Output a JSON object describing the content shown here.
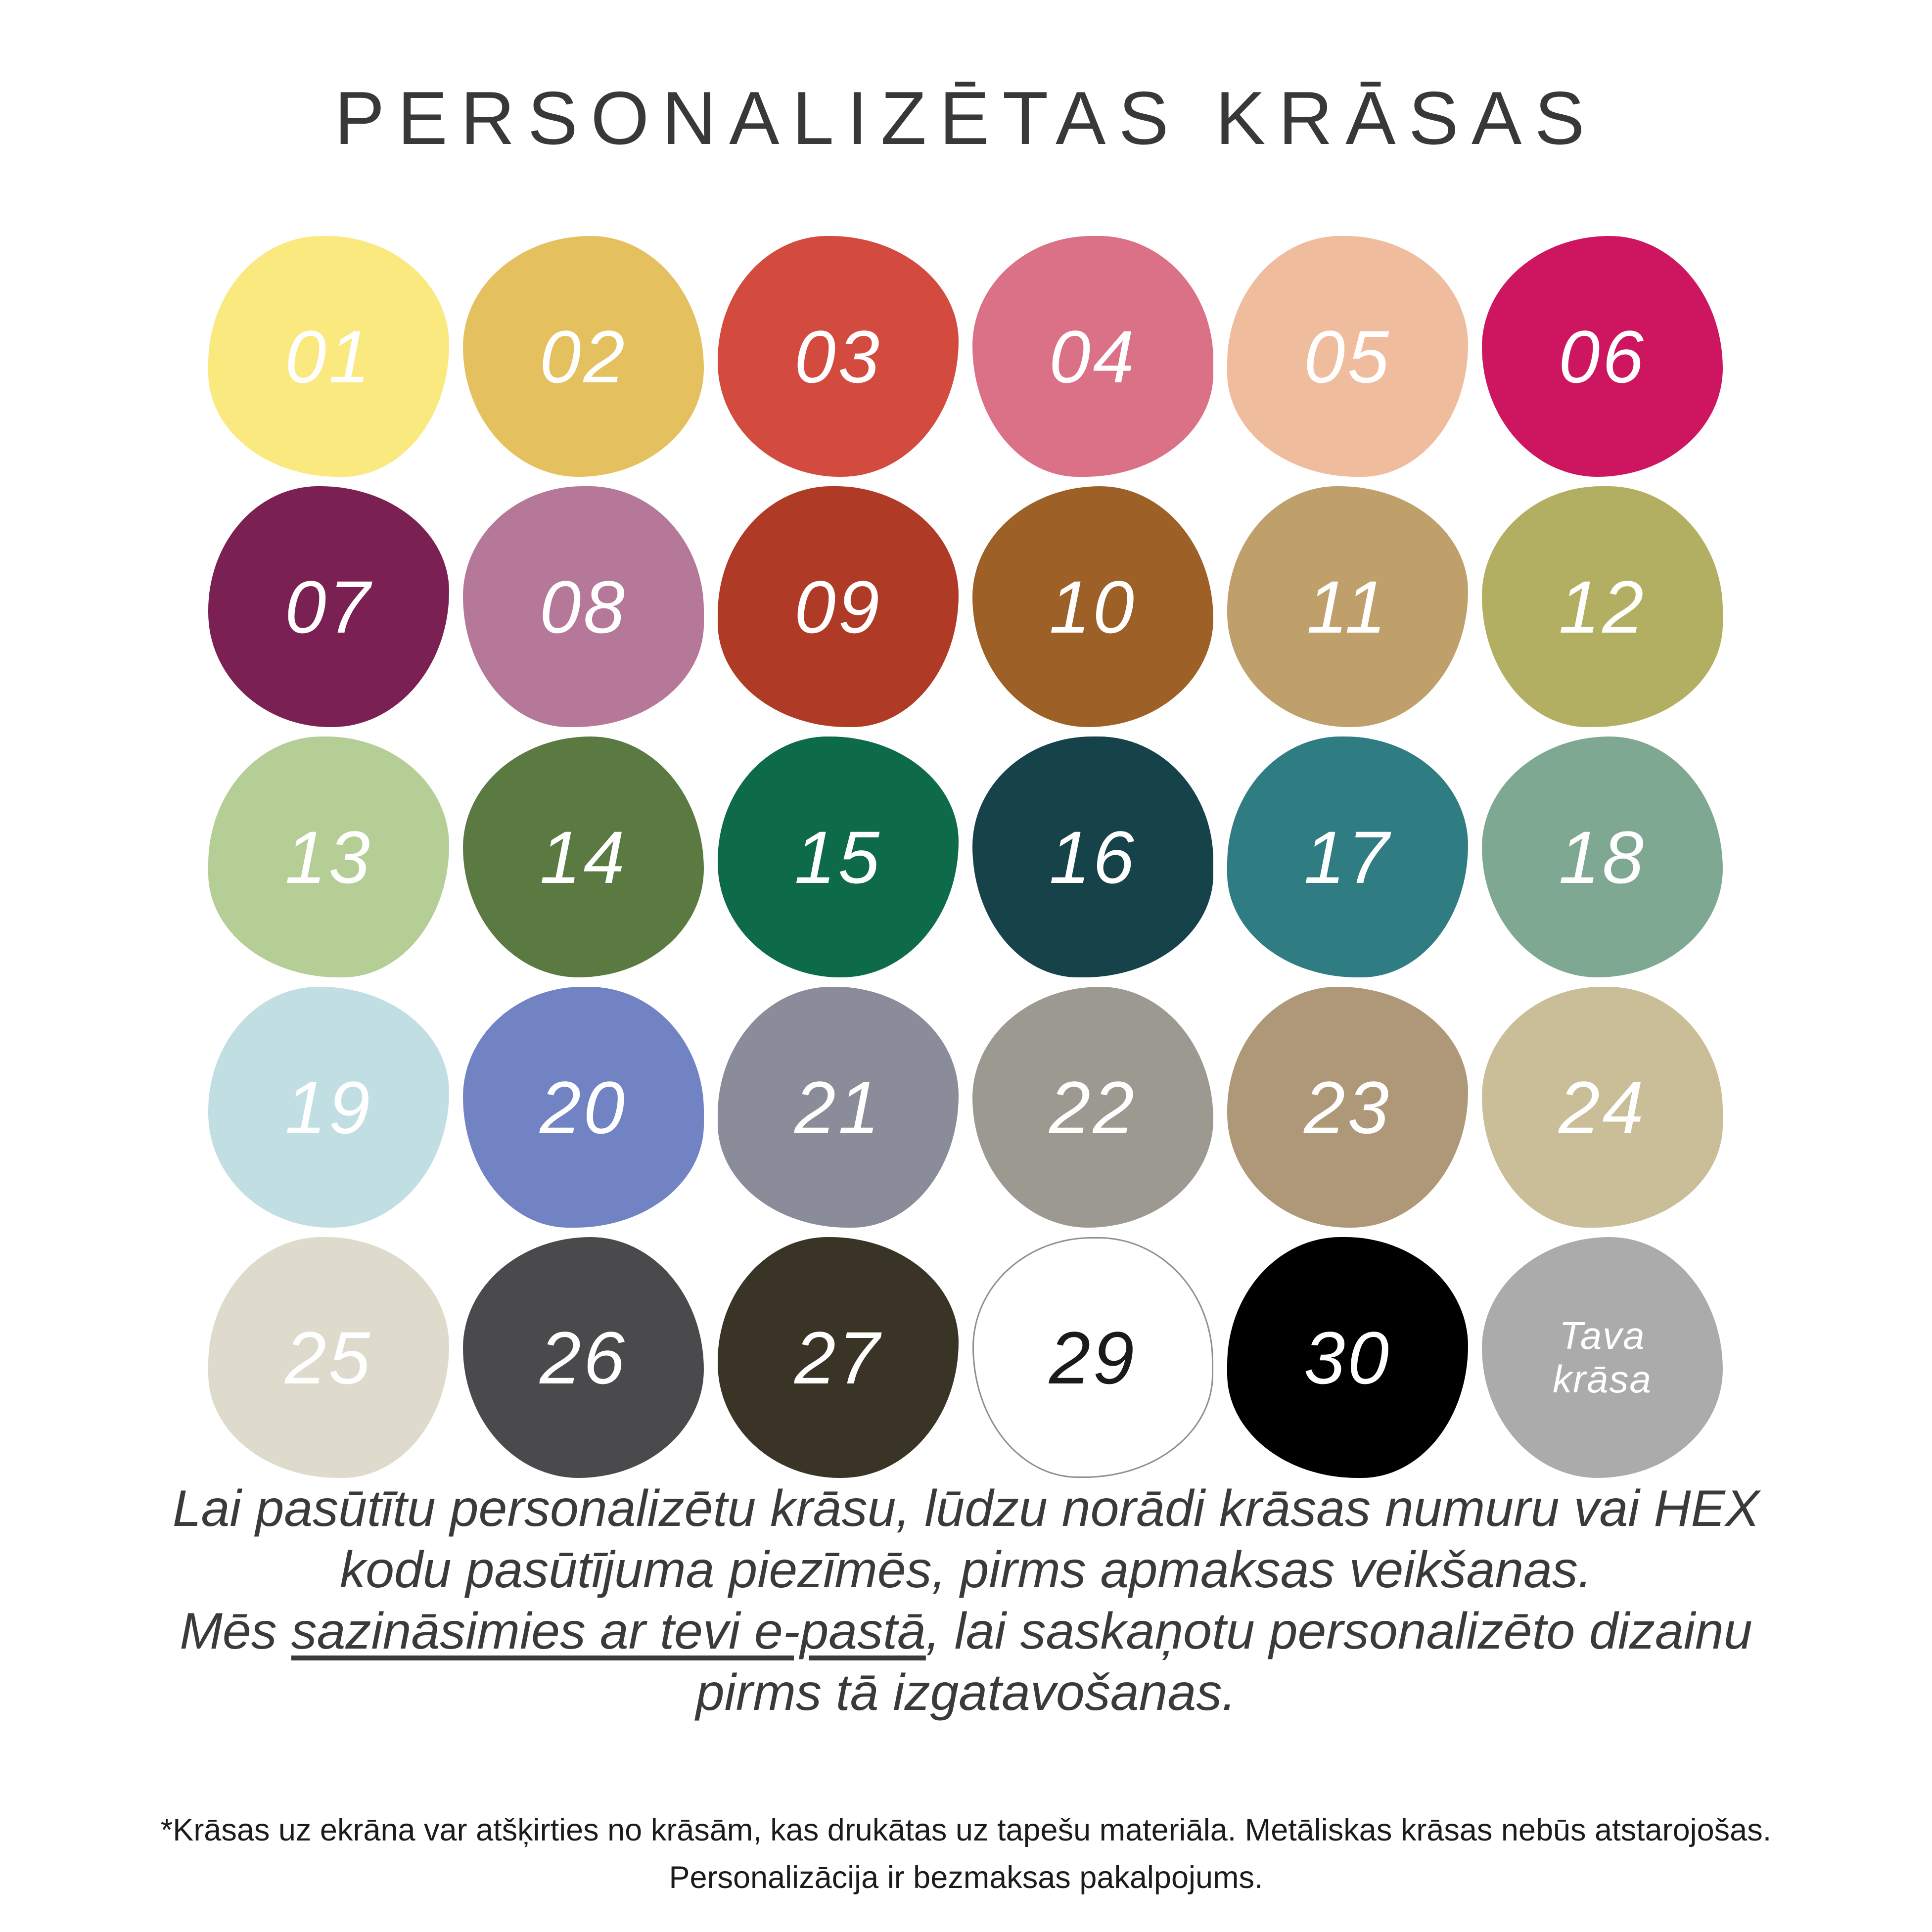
{
  "title": "PERSONALIZĒTAS KRĀSAS",
  "palette": {
    "default_number_color": "#FFFFFF",
    "swatches": [
      {
        "number": "01",
        "hex": "#FAE97E"
      },
      {
        "number": "02",
        "hex": "#E4C05E"
      },
      {
        "number": "03",
        "hex": "#D24B3E"
      },
      {
        "number": "04",
        "hex": "#DB7186"
      },
      {
        "number": "05",
        "hex": "#EFBD9D"
      },
      {
        "number": "06",
        "hex": "#CE1660"
      },
      {
        "number": "07",
        "hex": "#7B2052"
      },
      {
        "number": "08",
        "hex": "#B57899"
      },
      {
        "number": "09",
        "hex": "#AF3B27"
      },
      {
        "number": "10",
        "hex": "#9D6026"
      },
      {
        "number": "11",
        "hex": "#BFA06B"
      },
      {
        "number": "12",
        "hex": "#B3AF62"
      },
      {
        "number": "13",
        "hex": "#B5CE95"
      },
      {
        "number": "14",
        "hex": "#5A7A41"
      },
      {
        "number": "15",
        "hex": "#0E6B4A"
      },
      {
        "number": "16",
        "hex": "#16424A"
      },
      {
        "number": "17",
        "hex": "#2F7C82"
      },
      {
        "number": "18",
        "hex": "#7FA893"
      },
      {
        "number": "19",
        "hex": "#C1DFE3"
      },
      {
        "number": "20",
        "hex": "#7283C4"
      },
      {
        "number": "21",
        "hex": "#8B8C9A"
      },
      {
        "number": "22",
        "hex": "#9B9990"
      },
      {
        "number": "23",
        "hex": "#AF9878"
      },
      {
        "number": "24",
        "hex": "#CABE98"
      },
      {
        "number": "25",
        "hex": "#DFDBCC"
      },
      {
        "number": "26",
        "hex": "#4A4A4C"
      },
      {
        "number": "27",
        "hex": "#3A3426"
      },
      {
        "number": "29",
        "hex": "#FFFFFF",
        "text_color": "#1A1A1A",
        "outlined": true
      },
      {
        "number": "30",
        "hex": "#000000"
      },
      {
        "number": "Tava krāsa",
        "lines": [
          "Tava",
          "krāsa"
        ],
        "hex": "#ABABAB",
        "custom": true
      }
    ]
  },
  "info": {
    "line1": "Lai pasūtītu personalizētu krāsu, lūdzu norādi krāsas numuru vai HEX",
    "line2": "kodu pasūtījuma piezīmēs, pirms apmaksas veikšanas.",
    "line3_prefix": "Mēs ",
    "line3_underlined": "sazināsimies ar tevi e-pastā",
    "line3_suffix": ", lai saskaņotu personalizēto dizainu",
    "line4": "pirms tā izgatavošanas."
  },
  "footnote": {
    "line1": "*Krāsas uz ekrāna var atšķirties no krāsām, kas drukātas uz tapešu materiāla. Metāliskas krāsas nebūs atstarojošas.",
    "line2": "Personalizācija ir bezmaksas pakalpojums."
  },
  "colors": {
    "background": "#FFFFFF",
    "title_text": "#383838",
    "body_text": "#3A3A3A",
    "footnote_text": "#1B1B1B"
  }
}
